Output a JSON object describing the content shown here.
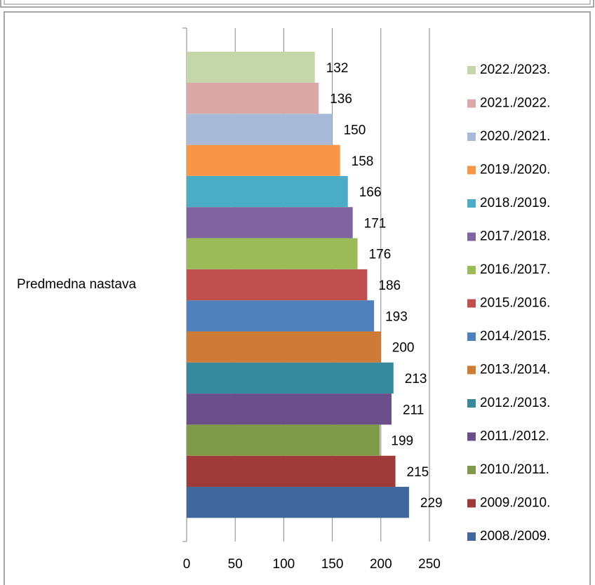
{
  "chart_data": {
    "type": "bar",
    "orientation": "horizontal",
    "categories": [
      "Predmedna nastava"
    ],
    "series": [
      {
        "name": "2008./2009.",
        "color": "#41689c",
        "values": [
          229
        ]
      },
      {
        "name": "2009./2010.",
        "color": "#9e3b3a",
        "values": [
          215
        ]
      },
      {
        "name": "2010./2011.",
        "color": "#7f9a48",
        "values": [
          199
        ]
      },
      {
        "name": "2011./2012.",
        "color": "#6a4f8a",
        "values": [
          211
        ]
      },
      {
        "name": "2012./2013.",
        "color": "#378a9c",
        "values": [
          213
        ]
      },
      {
        "name": "2013./2014.",
        "color": "#cd7b37",
        "values": [
          200
        ]
      },
      {
        "name": "2014./2015.",
        "color": "#4f81bd",
        "values": [
          193
        ]
      },
      {
        "name": "2015./2016.",
        "color": "#c0504d",
        "values": [
          186
        ]
      },
      {
        "name": "2016./2017.",
        "color": "#9bbb59",
        "values": [
          176
        ]
      },
      {
        "name": "2017./2018.",
        "color": "#8064a2",
        "values": [
          171
        ]
      },
      {
        "name": "2018./2019.",
        "color": "#4bacc6",
        "values": [
          166
        ]
      },
      {
        "name": "2019./2020.",
        "color": "#f79646",
        "values": [
          158
        ]
      },
      {
        "name": "2020./2021.",
        "color": "#a9b9d8",
        "values": [
          150
        ]
      },
      {
        "name": "2021./2022.",
        "color": "#d9a8a7",
        "values": [
          136
        ]
      },
      {
        "name": "2022./2023.",
        "color": "#c5d6a8",
        "values": [
          132
        ]
      }
    ],
    "xlim": [
      0,
      250
    ],
    "xticks": [
      0,
      50,
      100,
      150,
      200,
      250
    ],
    "grid": true,
    "legend": "right"
  }
}
